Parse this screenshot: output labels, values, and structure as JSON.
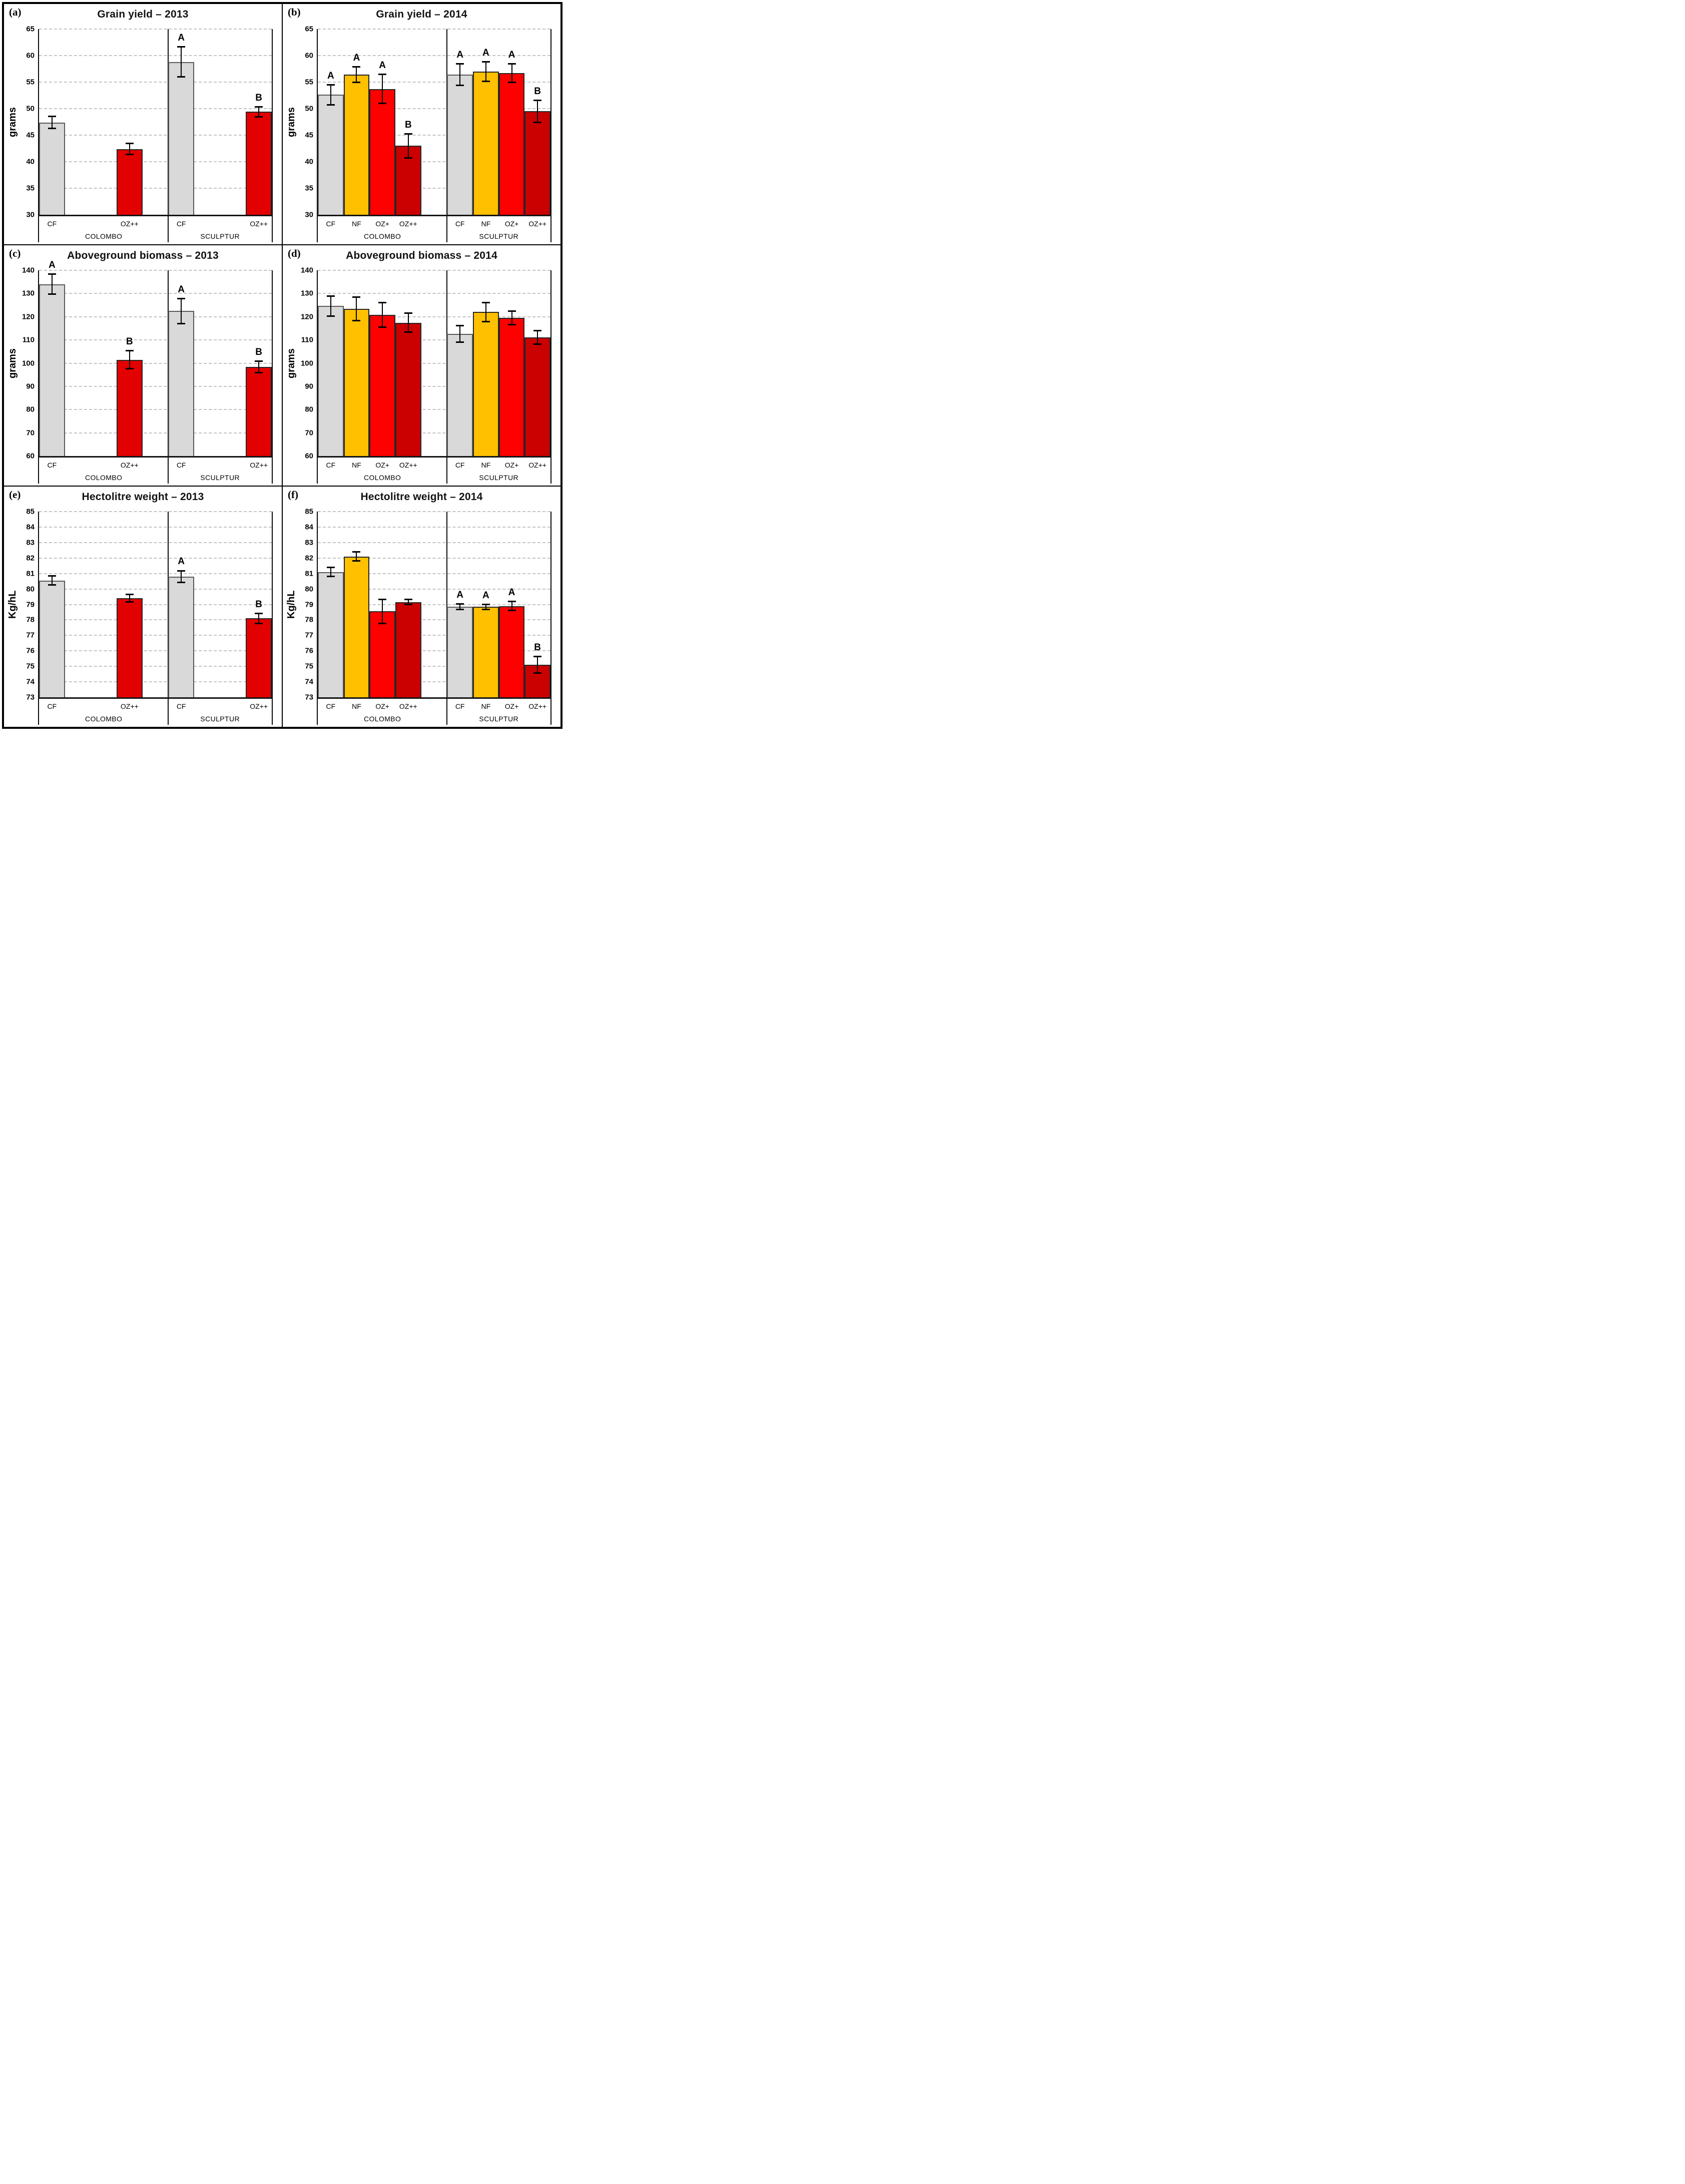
{
  "figure": {
    "background": "#FFFFFF",
    "border_color": "#000000",
    "grid_color": "#C4C4C4",
    "bar_colors": {
      "CF": "#D9D9D9",
      "NF": "#FFC000",
      "OZ+": "#FE0000",
      "OZ++_2013": "#E30000",
      "OZ++_2014": "#CB0000"
    }
  },
  "chart_data": [
    {
      "panel_letter": "(a)",
      "title": "Grain yield – 2013",
      "type": "bar",
      "ylabel": "grams",
      "ylim": [
        30,
        65
      ],
      "yticks": [
        30,
        35,
        40,
        45,
        50,
        55,
        60,
        65
      ],
      "grid": true,
      "groups": [
        {
          "label": "COLOMBO",
          "bars": [
            {
              "treatment": "CF",
              "value": 47.4,
              "err": 1.2,
              "letter": "",
              "fill": "#D9D9D9"
            },
            {
              "treatment": "OZ++",
              "value": 42.4,
              "err": 1.1,
              "letter": "",
              "fill": "#E30000"
            }
          ]
        },
        {
          "label": "SCULPTUR",
          "bars": [
            {
              "treatment": "CF",
              "value": 58.8,
              "err": 2.9,
              "letter": "A",
              "fill": "#D9D9D9"
            },
            {
              "treatment": "OZ++",
              "value": 49.4,
              "err": 1.0,
              "letter": "B",
              "fill": "#E30000"
            }
          ]
        }
      ]
    },
    {
      "panel_letter": "(b)",
      "title": "Grain yield – 2014",
      "type": "bar",
      "ylabel": "grams",
      "ylim": [
        30,
        65
      ],
      "yticks": [
        30,
        35,
        40,
        45,
        50,
        55,
        60,
        65
      ],
      "grid": true,
      "groups": [
        {
          "label": "COLOMBO",
          "bars": [
            {
              "treatment": "CF",
              "value": 52.6,
              "err": 1.9,
              "letter": "A",
              "fill": "#D9D9D9"
            },
            {
              "treatment": "NF",
              "value": 56.4,
              "err": 1.5,
              "letter": "A",
              "fill": "#FFC000"
            },
            {
              "treatment": "OZ+",
              "value": 53.7,
              "err": 2.8,
              "letter": "A",
              "fill": "#FE0000"
            },
            {
              "treatment": "OZ++",
              "value": 43.0,
              "err": 2.3,
              "letter": "B",
              "fill": "#CB0000"
            }
          ]
        },
        {
          "label": "SCULPTUR",
          "bars": [
            {
              "treatment": "CF",
              "value": 56.4,
              "err": 2.1,
              "letter": "A",
              "fill": "#D9D9D9"
            },
            {
              "treatment": "NF",
              "value": 57.0,
              "err": 1.9,
              "letter": "A",
              "fill": "#FFC000"
            },
            {
              "treatment": "OZ+",
              "value": 56.7,
              "err": 1.8,
              "letter": "A",
              "fill": "#FE0000"
            },
            {
              "treatment": "OZ++",
              "value": 49.5,
              "err": 2.1,
              "letter": "B",
              "fill": "#CB0000"
            }
          ]
        }
      ]
    },
    {
      "panel_letter": "(c)",
      "title": "Aboveground biomass – 2013",
      "type": "bar",
      "ylabel": "grams",
      "ylim": [
        60,
        140
      ],
      "yticks": [
        60,
        70,
        80,
        90,
        100,
        110,
        120,
        130,
        140
      ],
      "grid": true,
      "groups": [
        {
          "label": "COLOMBO",
          "bars": [
            {
              "treatment": "CF",
              "value": 134.0,
              "err": 4.4,
              "letter": "A",
              "fill": "#D9D9D9"
            },
            {
              "treatment": "OZ++",
              "value": 101.5,
              "err": 4.0,
              "letter": "B",
              "fill": "#E30000"
            }
          ]
        },
        {
          "label": "SCULPTUR",
          "bars": [
            {
              "treatment": "CF",
              "value": 122.5,
              "err": 5.5,
              "letter": "A",
              "fill": "#D9D9D9"
            },
            {
              "treatment": "OZ++",
              "value": 98.4,
              "err": 2.6,
              "letter": "B",
              "fill": "#E30000"
            }
          ]
        }
      ]
    },
    {
      "panel_letter": "(d)",
      "title": "Aboveground biomass – 2014",
      "type": "bar",
      "ylabel": "grams",
      "ylim": [
        60,
        140
      ],
      "yticks": [
        60,
        70,
        80,
        90,
        100,
        110,
        120,
        130,
        140
      ],
      "grid": true,
      "groups": [
        {
          "label": "COLOMBO",
          "bars": [
            {
              "treatment": "CF",
              "value": 124.6,
              "err": 4.5,
              "letter": "",
              "fill": "#D9D9D9"
            },
            {
              "treatment": "NF",
              "value": 123.4,
              "err": 5.1,
              "letter": "",
              "fill": "#FFC000"
            },
            {
              "treatment": "OZ+",
              "value": 120.8,
              "err": 5.4,
              "letter": "",
              "fill": "#FE0000"
            },
            {
              "treatment": "OZ++",
              "value": 117.4,
              "err": 4.2,
              "letter": "",
              "fill": "#CB0000"
            }
          ]
        },
        {
          "label": "SCULPTUR",
          "bars": [
            {
              "treatment": "CF",
              "value": 112.6,
              "err": 3.6,
              "letter": "",
              "fill": "#D9D9D9"
            },
            {
              "treatment": "NF",
              "value": 122.0,
              "err": 4.3,
              "letter": "",
              "fill": "#FFC000"
            },
            {
              "treatment": "OZ+",
              "value": 119.5,
              "err": 3.1,
              "letter": "",
              "fill": "#FE0000"
            },
            {
              "treatment": "OZ++",
              "value": 111.1,
              "err": 3.1,
              "letter": "",
              "fill": "#CB0000"
            }
          ]
        }
      ]
    },
    {
      "panel_letter": "(e)",
      "title": "Hectolitre weight – 2013",
      "type": "bar",
      "ylabel": "Kg/hL",
      "ylim": [
        73,
        85
      ],
      "yticks": [
        73,
        74,
        75,
        76,
        77,
        78,
        79,
        80,
        81,
        82,
        83,
        84,
        85
      ],
      "grid": true,
      "groups": [
        {
          "label": "COLOMBO",
          "bars": [
            {
              "treatment": "CF",
              "value": 80.55,
              "err": 0.3,
              "letter": "",
              "fill": "#D9D9D9"
            },
            {
              "treatment": "OZ++",
              "value": 79.4,
              "err": 0.25,
              "letter": "",
              "fill": "#E30000"
            }
          ]
        },
        {
          "label": "SCULPTUR",
          "bars": [
            {
              "treatment": "CF",
              "value": 80.8,
              "err": 0.4,
              "letter": "A",
              "fill": "#D9D9D9"
            },
            {
              "treatment": "OZ++",
              "value": 78.1,
              "err": 0.35,
              "letter": "B",
              "fill": "#E30000"
            }
          ]
        }
      ]
    },
    {
      "panel_letter": "(f)",
      "title": "Hectolitre weight – 2014",
      "type": "bar",
      "ylabel": "Kg/hL",
      "ylim": [
        73,
        85
      ],
      "yticks": [
        73,
        74,
        75,
        76,
        77,
        78,
        79,
        80,
        81,
        82,
        83,
        84,
        85
      ],
      "grid": true,
      "groups": [
        {
          "label": "COLOMBO",
          "bars": [
            {
              "treatment": "CF",
              "value": 81.1,
              "err": 0.3,
              "letter": "",
              "fill": "#D9D9D9"
            },
            {
              "treatment": "NF",
              "value": 82.1,
              "err": 0.3,
              "letter": "",
              "fill": "#FFC000"
            },
            {
              "treatment": "OZ+",
              "value": 78.55,
              "err": 0.8,
              "letter": "",
              "fill": "#FE0000"
            },
            {
              "treatment": "OZ++",
              "value": 79.15,
              "err": 0.18,
              "letter": "",
              "fill": "#CB0000"
            }
          ]
        },
        {
          "label": "SCULPTUR",
          "bars": [
            {
              "treatment": "CF",
              "value": 78.85,
              "err": 0.2,
              "letter": "A",
              "fill": "#D9D9D9"
            },
            {
              "treatment": "NF",
              "value": 78.85,
              "err": 0.18,
              "letter": "A",
              "fill": "#FFC000"
            },
            {
              "treatment": "OZ+",
              "value": 78.9,
              "err": 0.3,
              "letter": "A",
              "fill": "#FE0000"
            },
            {
              "treatment": "OZ++",
              "value": 75.1,
              "err": 0.55,
              "letter": "B",
              "fill": "#CB0000"
            }
          ]
        }
      ]
    }
  ]
}
